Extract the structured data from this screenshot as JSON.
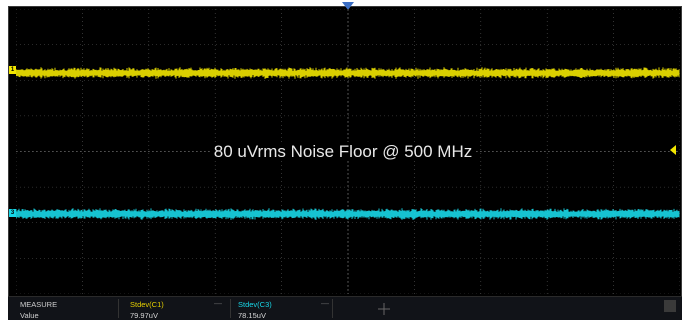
{
  "annotation": {
    "text": "80 uVrms Noise Floor @ 500 MHz"
  },
  "channels": [
    {
      "id": "C1",
      "marker": "1",
      "color": "#f2e600"
    },
    {
      "id": "C3",
      "marker": "3",
      "color": "#18d8e8"
    }
  ],
  "measure": {
    "title": "MEASURE",
    "row_label": "Value",
    "items": [
      {
        "name": "Stdev(C1)",
        "value": "79.97uV",
        "color": "#e6d000"
      },
      {
        "name": "Stdev(C3)",
        "value": "78.15uV",
        "color": "#18d8e8"
      }
    ],
    "separator": "—"
  },
  "colors": {
    "trigger_marker": "#3b6ec4",
    "trigger_level": "#f2e600",
    "grid": "#555555"
  }
}
